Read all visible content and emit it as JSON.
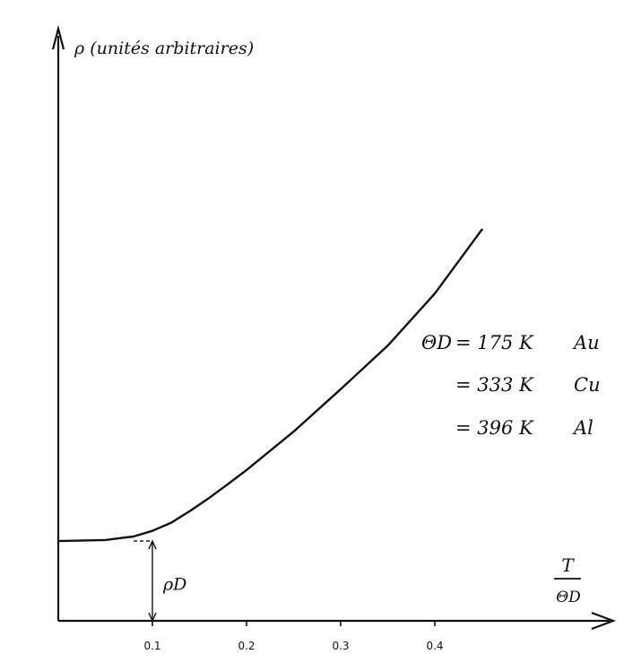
{
  "chart_data": {
    "type": "line",
    "title": "",
    "ylabel": "ρ (unités arbitraires)",
    "xlabel_numerator": "T",
    "xlabel_denominator": "ΘD",
    "xlim": [
      0,
      0.6
    ],
    "ylim": [
      0,
      1
    ],
    "x_ticks": [
      0.1,
      0.2,
      0.3,
      0.4
    ],
    "x_tick_labels": [
      "0.1",
      "0.2",
      "0.3",
      "0.4"
    ],
    "grid": false,
    "residual_label": "ρD",
    "residual_value": 0.156,
    "residual_x": 0.1,
    "series": [
      {
        "x": [
          0.0,
          0.05,
          0.08,
          0.1,
          0.12,
          0.14,
          0.16,
          0.18,
          0.2,
          0.25,
          0.3,
          0.35,
          0.4,
          0.45
        ],
        "y": [
          0.156,
          0.158,
          0.165,
          0.176,
          0.192,
          0.215,
          0.24,
          0.267,
          0.295,
          0.37,
          0.453,
          0.538,
          0.64,
          0.765
        ]
      }
    ],
    "annotations": [
      {
        "symbol": "ΘD",
        "value": "= 175 K",
        "material": "Au"
      },
      {
        "symbol": "",
        "value": "= 333 K",
        "material": "Cu"
      },
      {
        "symbol": "",
        "value": "= 396 K",
        "material": "Al"
      }
    ]
  }
}
